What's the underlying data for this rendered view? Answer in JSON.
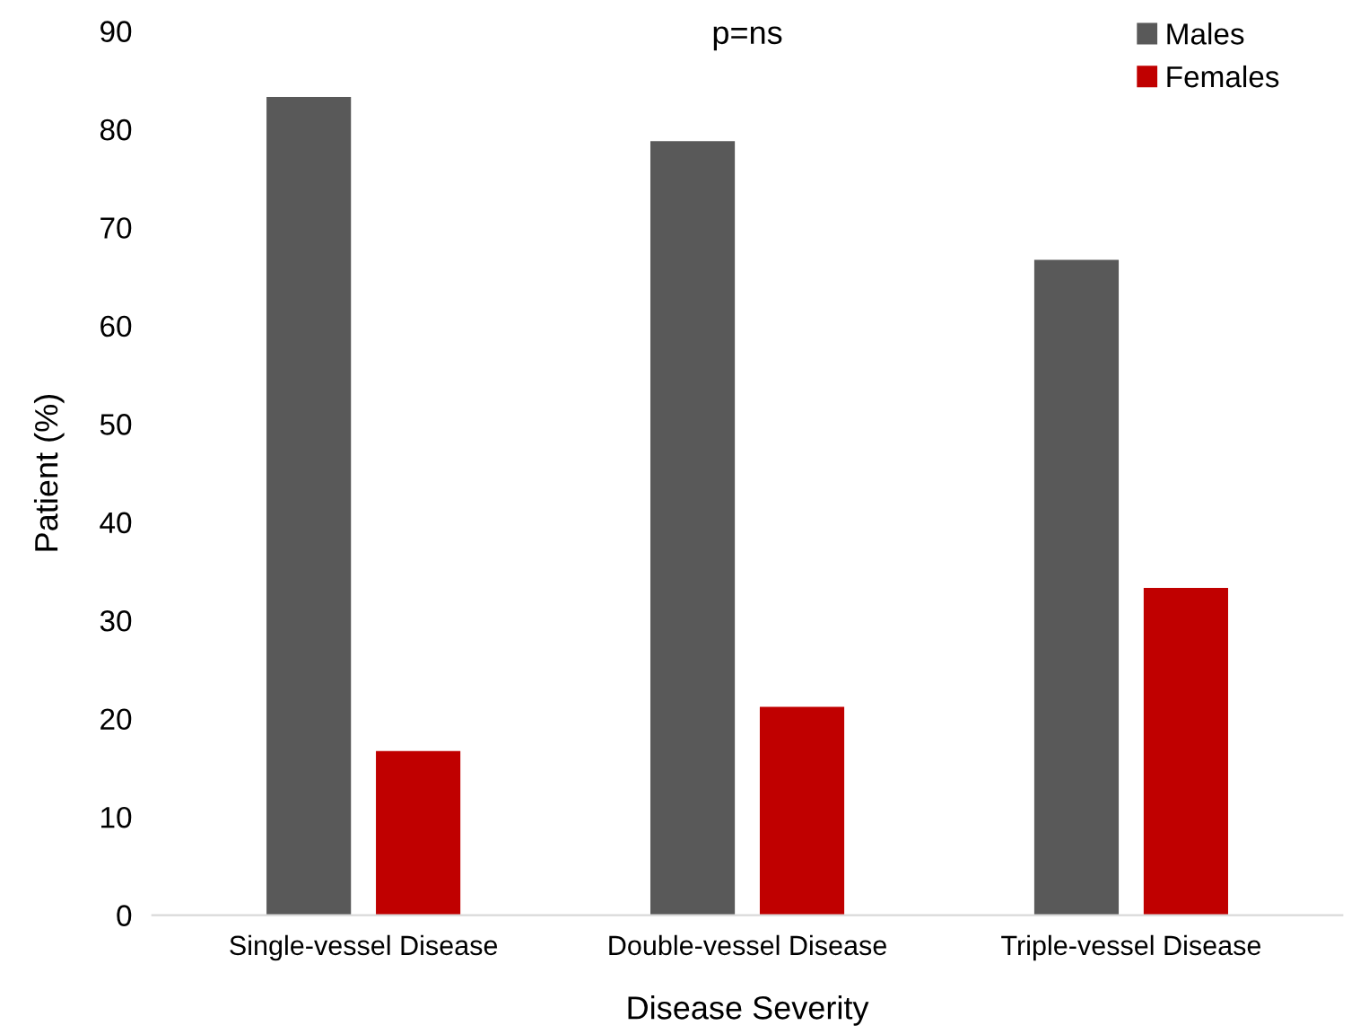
{
  "chart_data": {
    "type": "bar",
    "xlabel": "Disease Severity",
    "ylabel": "Patient (%)",
    "categories": [
      "Single-vessel Disease",
      "Double-vessel Disease",
      "Triple-vessel Disease"
    ],
    "series": [
      {
        "name": "Males",
        "color": "#595959",
        "values": [
          83.3,
          78.8,
          66.7
        ]
      },
      {
        "name": "Females",
        "color": "#c00000",
        "values": [
          16.7,
          21.2,
          33.3
        ]
      }
    ],
    "ylim": [
      0,
      90
    ],
    "yticks": [
      0,
      10,
      20,
      30,
      40,
      50,
      60,
      70,
      80,
      90
    ],
    "grid": false,
    "legend": "top right",
    "annotations": [
      "p=ns"
    ]
  }
}
